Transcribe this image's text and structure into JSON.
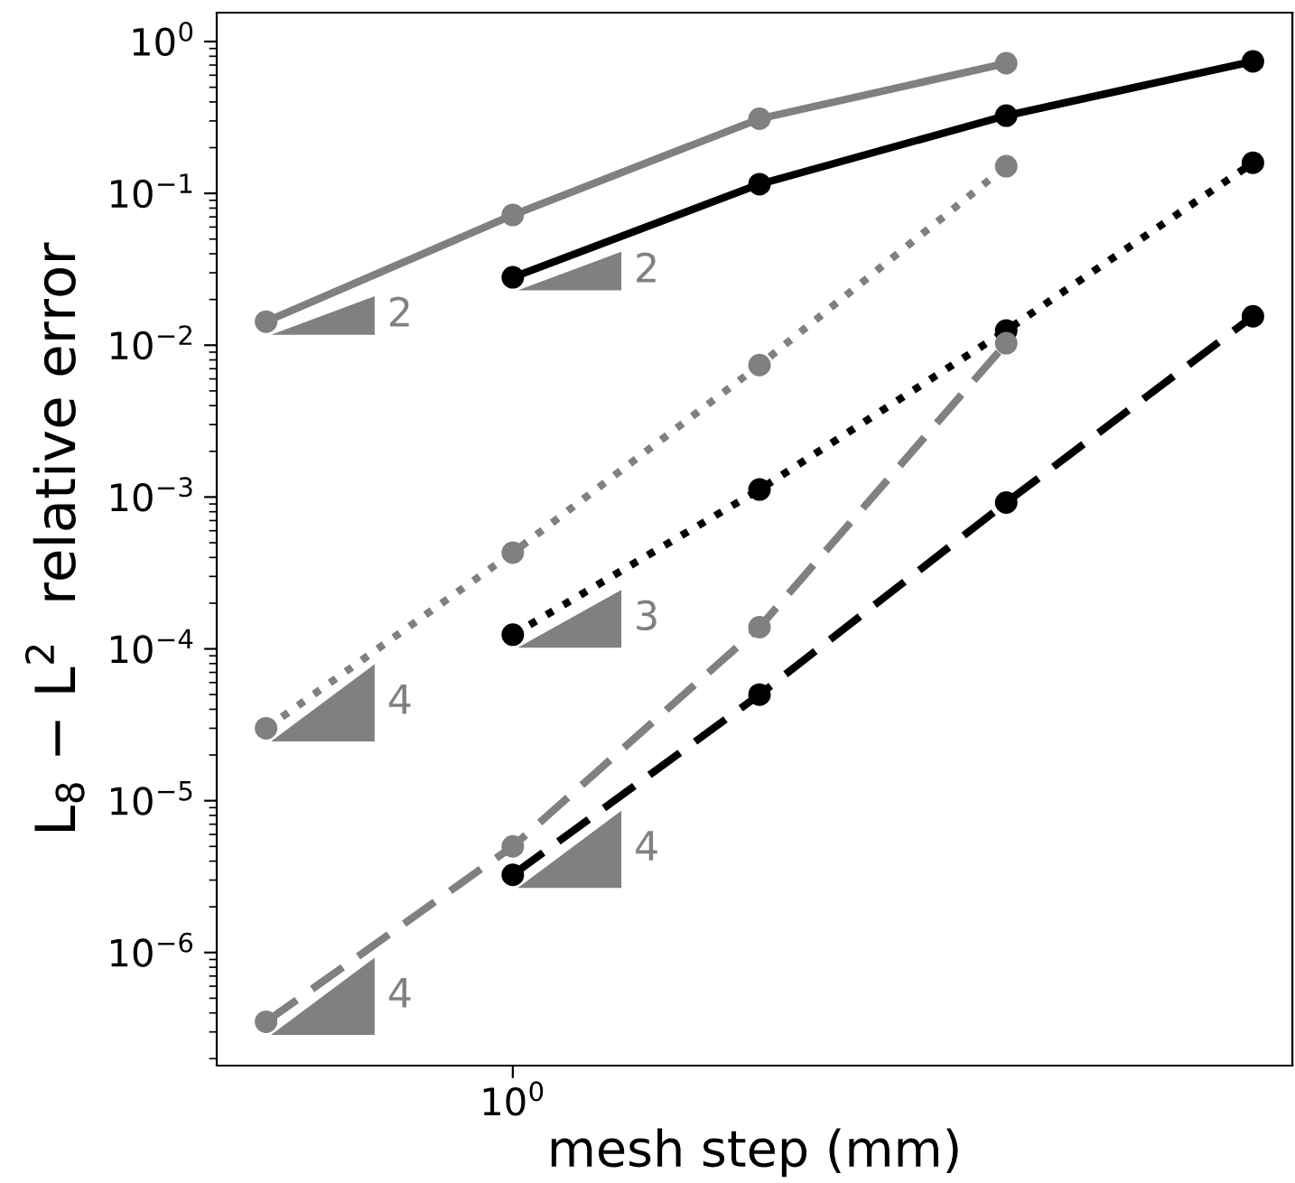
{
  "chart_data": {
    "type": "line",
    "xlabel": "mesh step (mm)",
    "ylabel": "L$_{8}$ − L$^{2}$  relative error",
    "log": "y",
    "marker": "circle",
    "grid": false,
    "categories": [
      null,
      "10$^{0}$",
      null,
      null,
      null
    ],
    "ylim": [
      1.8e-07,
      1.55
    ],
    "yticks": [
      {
        "value": 1e-06,
        "label": "10$^{−6}$"
      },
      {
        "value": 1e-05,
        "label": "10$^{−5}$"
      },
      {
        "value": 0.0001,
        "label": "10$^{−4}$"
      },
      {
        "value": 0.001,
        "label": "10$^{−3}$"
      },
      {
        "value": 0.01,
        "label": "10$^{−2}$"
      },
      {
        "value": 0.1,
        "label": "10$^{−1}$"
      },
      {
        "value": 1,
        "label": "10$^{0}$"
      }
    ],
    "series": [
      {
        "color": "#808080",
        "line_style": "solid",
        "values": [
          0.0143,
          0.072,
          0.31,
          0.72,
          null
        ]
      },
      {
        "color": "#000000",
        "line_style": "solid",
        "values": [
          null,
          0.028,
          0.115,
          0.325,
          0.74
        ]
      },
      {
        "color": "#808080",
        "line_style": "dotted",
        "values": [
          3e-05,
          0.00043,
          0.0074,
          0.151,
          null
        ]
      },
      {
        "color": "#000000",
        "line_style": "dotted",
        "values": [
          null,
          0.000124,
          0.00112,
          0.0125,
          0.159
        ]
      },
      {
        "color": "#808080",
        "line_style": "dashed",
        "values": [
          3.5e-07,
          5e-06,
          0.000139,
          0.0103,
          null
        ]
      },
      {
        "color": "#000000",
        "line_style": "dashed",
        "values": [
          null,
          3.25e-06,
          5e-05,
          0.00092,
          0.0155
        ]
      }
    ],
    "annotations": [
      "2",
      "2",
      "4",
      "3",
      "4",
      "4"
    ]
  }
}
